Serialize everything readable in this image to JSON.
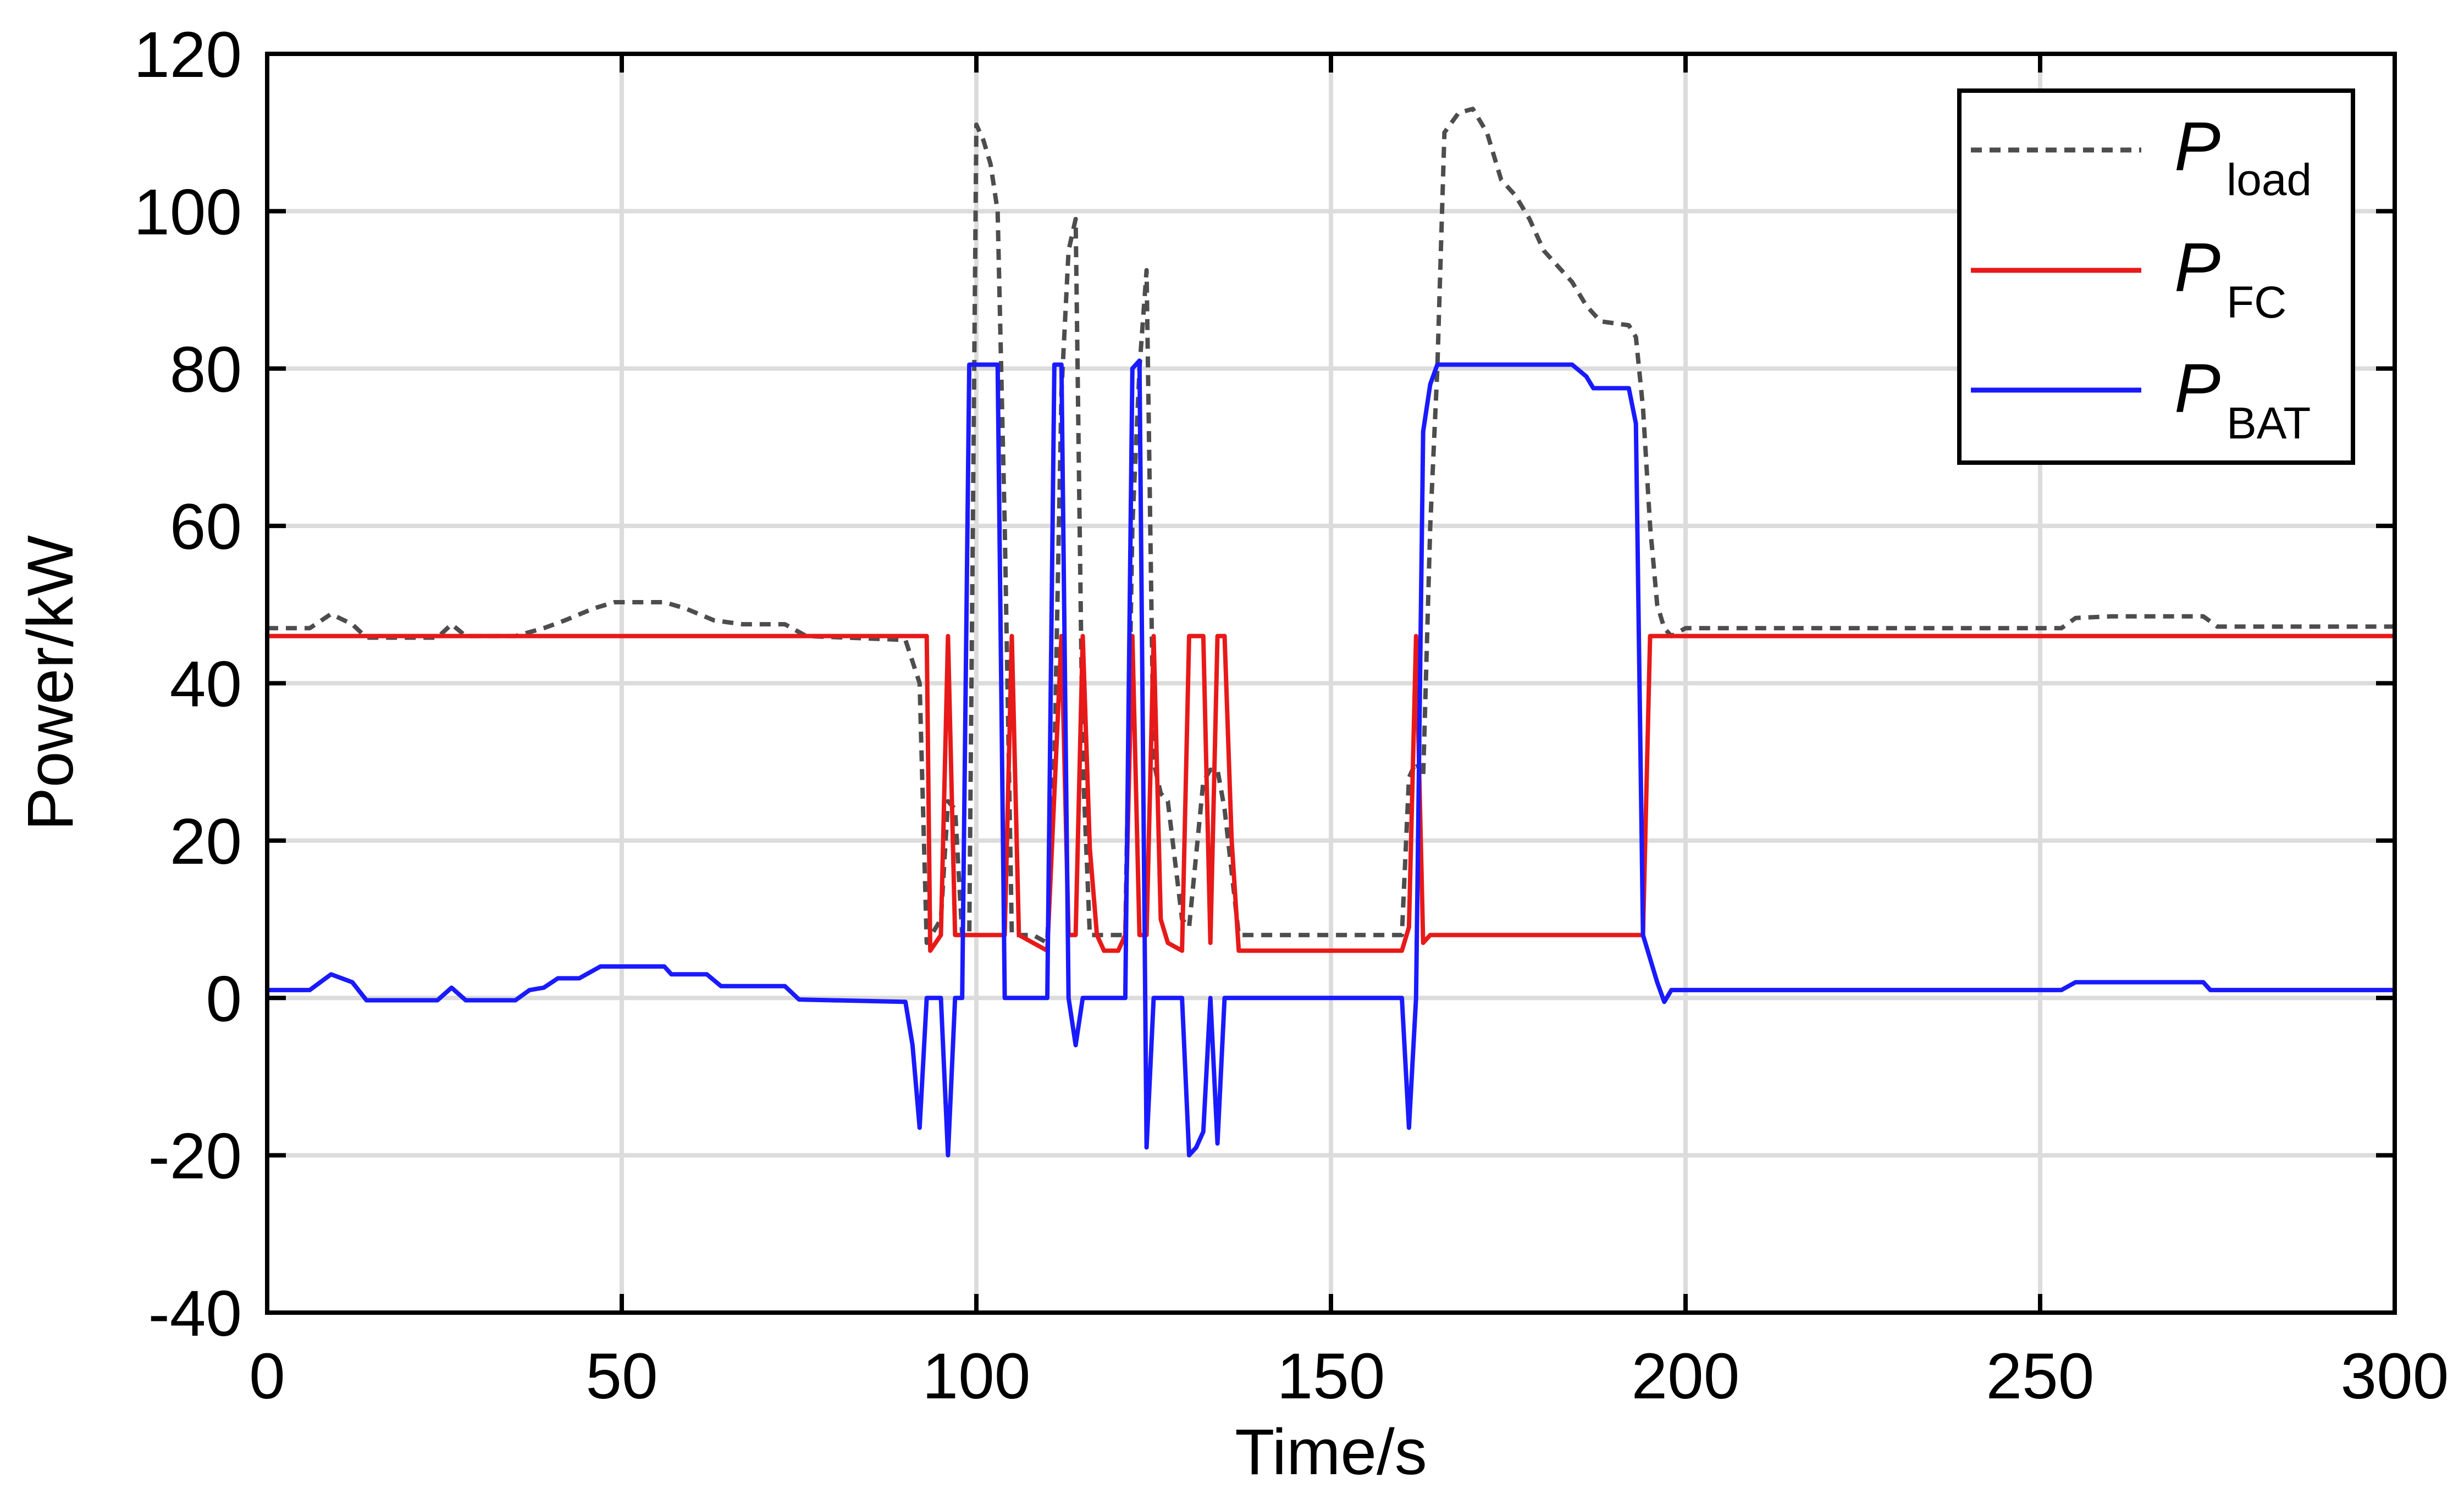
{
  "chart_data": {
    "type": "line",
    "xlabel": "Time/s",
    "ylabel": "Power/kW",
    "xlim": [
      0,
      300
    ],
    "ylim": [
      -40,
      120
    ],
    "xticks": [
      0,
      50,
      100,
      150,
      200,
      250,
      300
    ],
    "yticks": [
      -40,
      -20,
      0,
      20,
      40,
      60,
      80,
      100,
      120
    ],
    "grid": true,
    "legend_position": "top-right",
    "series": [
      {
        "name": "P",
        "subscript": "load",
        "color": "#4d4d4d",
        "dash": true,
        "points": [
          [
            0,
            47
          ],
          [
            6,
            47
          ],
          [
            9,
            48.8
          ],
          [
            12,
            47.5
          ],
          [
            14,
            45.8
          ],
          [
            24,
            45.8
          ],
          [
            26,
            47.5
          ],
          [
            28,
            46
          ],
          [
            35,
            46
          ],
          [
            39,
            47
          ],
          [
            42,
            48
          ],
          [
            46,
            49.5
          ],
          [
            49,
            50.3
          ],
          [
            56,
            50.3
          ],
          [
            59,
            49.5
          ],
          [
            63,
            48
          ],
          [
            67,
            47.5
          ],
          [
            73,
            47.5
          ],
          [
            76,
            46
          ],
          [
            90,
            45.5
          ],
          [
            92,
            40
          ],
          [
            93,
            7
          ],
          [
            95,
            10
          ],
          [
            96,
            25
          ],
          [
            97,
            24
          ],
          [
            98,
            8
          ],
          [
            99,
            8
          ],
          [
            100,
            111
          ],
          [
            101,
            109
          ],
          [
            102,
            106
          ],
          [
            103,
            100
          ],
          [
            104,
            60
          ],
          [
            105,
            8
          ],
          [
            108,
            8
          ],
          [
            110,
            7
          ],
          [
            111,
            30
          ],
          [
            112,
            77
          ],
          [
            113,
            95
          ],
          [
            114,
            99
          ],
          [
            115,
            30
          ],
          [
            116,
            8
          ],
          [
            121,
            8
          ],
          [
            122,
            60
          ],
          [
            123,
            80
          ],
          [
            124,
            92.5
          ],
          [
            125,
            30
          ],
          [
            126,
            26
          ],
          [
            127,
            25
          ],
          [
            129,
            10
          ],
          [
            130,
            9
          ],
          [
            132,
            27.5
          ],
          [
            133,
            29
          ],
          [
            134,
            29
          ],
          [
            135,
            24
          ],
          [
            137,
            8
          ],
          [
            160,
            8
          ],
          [
            161,
            28
          ],
          [
            162,
            30
          ],
          [
            163,
            28
          ],
          [
            164,
            60
          ],
          [
            165,
            80
          ],
          [
            166,
            110
          ],
          [
            168,
            112.5
          ],
          [
            170,
            113
          ],
          [
            172,
            110
          ],
          [
            174,
            104
          ],
          [
            176,
            102
          ],
          [
            178,
            99
          ],
          [
            180,
            95
          ],
          [
            182,
            93
          ],
          [
            184,
            91
          ],
          [
            186,
            88
          ],
          [
            188,
            86
          ],
          [
            192,
            85.5
          ],
          [
            193,
            84
          ],
          [
            194,
            75
          ],
          [
            195,
            60
          ],
          [
            196,
            50
          ],
          [
            197,
            47
          ],
          [
            198,
            46
          ],
          [
            200,
            47
          ],
          [
            253,
            47
          ],
          [
            255,
            48.3
          ],
          [
            260,
            48.5
          ],
          [
            273,
            48.5
          ],
          [
            275,
            47.2
          ],
          [
            300,
            47.2
          ]
        ]
      },
      {
        "name": "P",
        "subscript": "FC",
        "color": "#e81919",
        "dash": false,
        "points": [
          [
            0,
            46
          ],
          [
            93,
            46
          ],
          [
            93.5,
            6
          ],
          [
            95,
            8
          ],
          [
            96,
            46
          ],
          [
            97,
            8
          ],
          [
            98,
            8
          ],
          [
            99,
            8
          ],
          [
            104,
            8
          ],
          [
            105,
            46
          ],
          [
            106,
            8
          ],
          [
            108,
            7
          ],
          [
            110,
            6
          ],
          [
            112,
            46
          ],
          [
            113,
            8
          ],
          [
            114,
            8
          ],
          [
            115,
            46
          ],
          [
            116,
            19
          ],
          [
            117,
            8
          ],
          [
            118,
            6
          ],
          [
            120,
            6
          ],
          [
            121,
            8
          ],
          [
            122,
            46
          ],
          [
            123,
            8
          ],
          [
            124,
            8
          ],
          [
            125,
            46
          ],
          [
            126,
            10
          ],
          [
            127,
            7
          ],
          [
            129,
            6
          ],
          [
            130,
            46
          ],
          [
            131,
            46
          ],
          [
            132,
            46
          ],
          [
            133,
            7
          ],
          [
            134,
            46
          ],
          [
            135,
            46
          ],
          [
            136,
            20
          ],
          [
            137,
            6
          ],
          [
            160,
            6
          ],
          [
            161,
            9
          ],
          [
            162,
            46
          ],
          [
            163,
            7
          ],
          [
            164,
            8
          ],
          [
            165,
            8
          ],
          [
            194,
            8
          ],
          [
            195,
            46
          ],
          [
            300,
            46
          ]
        ]
      },
      {
        "name": "P",
        "subscript": "BAT",
        "color": "#1a1aff",
        "dash": false,
        "points": [
          [
            0,
            1
          ],
          [
            6,
            1
          ],
          [
            9,
            3
          ],
          [
            12,
            2
          ],
          [
            14,
            -0.3
          ],
          [
            24,
            -0.3
          ],
          [
            26,
            1.3
          ],
          [
            28,
            -0.3
          ],
          [
            35,
            -0.3
          ],
          [
            37,
            1
          ],
          [
            39,
            1.3
          ],
          [
            41,
            2.5
          ],
          [
            44,
            2.5
          ],
          [
            47,
            4
          ],
          [
            56,
            4
          ],
          [
            57,
            3
          ],
          [
            62,
            3
          ],
          [
            64,
            1.5
          ],
          [
            73,
            1.5
          ],
          [
            75,
            -0.2
          ],
          [
            90,
            -0.5
          ],
          [
            91,
            -6
          ],
          [
            92,
            -16.5
          ],
          [
            93,
            0
          ],
          [
            95,
            0
          ],
          [
            96,
            -20
          ],
          [
            97,
            0
          ],
          [
            98,
            0
          ],
          [
            99,
            80.5
          ],
          [
            103,
            80.5
          ],
          [
            104,
            0
          ],
          [
            109,
            0
          ],
          [
            110,
            0
          ],
          [
            111,
            80.5
          ],
          [
            112,
            80.5
          ],
          [
            113,
            0
          ],
          [
            114,
            -6
          ],
          [
            115,
            0
          ],
          [
            120,
            0
          ],
          [
            121,
            0
          ],
          [
            122,
            80
          ],
          [
            123,
            81
          ],
          [
            124,
            -19
          ],
          [
            125,
            0
          ],
          [
            129,
            0
          ],
          [
            130,
            -20
          ],
          [
            131,
            -19
          ],
          [
            132,
            -17
          ],
          [
            133,
            0
          ],
          [
            134,
            -18.5
          ],
          [
            135,
            0
          ],
          [
            159,
            0
          ],
          [
            160,
            0
          ],
          [
            161,
            -16.5
          ],
          [
            162,
            0
          ],
          [
            163,
            72
          ],
          [
            164,
            78
          ],
          [
            165,
            80.5
          ],
          [
            184,
            80.5
          ],
          [
            186,
            79
          ],
          [
            187,
            77.5
          ],
          [
            192,
            77.5
          ],
          [
            193,
            73
          ],
          [
            194,
            8
          ],
          [
            195,
            5
          ],
          [
            196,
            2
          ],
          [
            197,
            -0.5
          ],
          [
            198,
            1
          ],
          [
            253,
            1
          ],
          [
            255,
            2
          ],
          [
            260,
            2
          ],
          [
            273,
            2
          ],
          [
            274,
            1
          ],
          [
            300,
            1
          ]
        ]
      }
    ]
  }
}
